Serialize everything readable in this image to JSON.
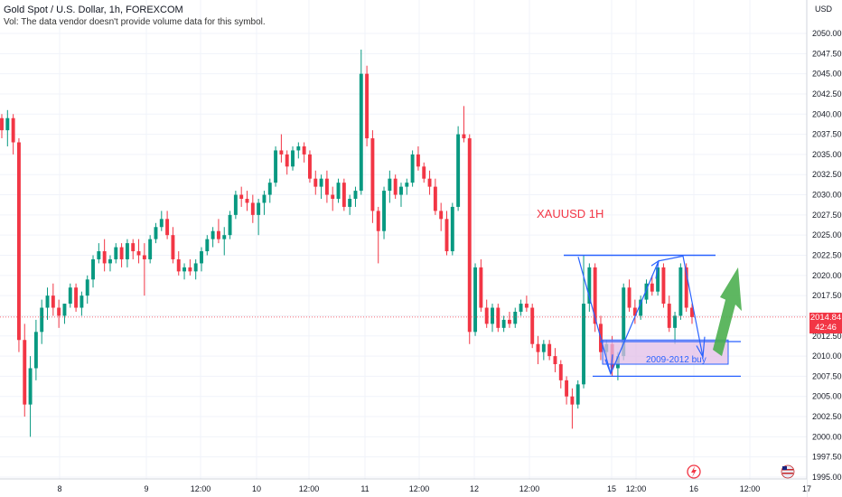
{
  "header": {
    "title": "Gold Spot / U.S. Dollar, 1h, FOREXCOM",
    "volume_note": "Vol: The data vendor doesn't provide volume data for this symbol."
  },
  "price_axis": {
    "currency": "USD",
    "current_price": "2014.84",
    "countdown": "42:46"
  },
  "annotations": {
    "chart_label": "XAUUSD 1H",
    "zone_label": "2009-2012 buy"
  },
  "colors": {
    "up": "#089981",
    "down": "#f23645",
    "annotation_blue": "#2962ff",
    "zone_fill": "#e1bee7",
    "arrow_green": "#4caf50",
    "label_red": "#f23645"
  },
  "icons": [
    "lightning-icon",
    "flag-icon"
  ],
  "chart_data": {
    "type": "candlestick",
    "title": "Gold Spot / U.S. Dollar, 1h, FOREXCOM",
    "ylim": [
      1995,
      2052.5
    ],
    "y_ticks": [
      1995.0,
      1997.5,
      2000.0,
      2002.5,
      2005.0,
      2007.5,
      2010.0,
      2012.5,
      2015.0,
      2017.5,
      2020.0,
      2022.5,
      2025.0,
      2027.5,
      2030.0,
      2032.5,
      2035.0,
      2037.5,
      2040.0,
      2042.5,
      2045.0,
      2047.5,
      2050.0
    ],
    "x_tick_labels": [
      "8",
      "9",
      "12:00",
      "10",
      "12:00",
      "11",
      "12:00",
      "12",
      "12:00",
      "15",
      "12:00",
      "16",
      "12:00",
      "17"
    ],
    "current_price": 2014.84,
    "resistance_level": 2022.5,
    "support_levels": [
      2011.8,
      2007.5
    ],
    "buy_zone": [
      2009,
      2012
    ],
    "candles": [
      [
        2039.5,
        2040.0,
        2037.0,
        2038.0
      ],
      [
        2038.0,
        2040.5,
        2036.0,
        2039.5
      ],
      [
        2039.5,
        2040.0,
        2035.0,
        2036.5
      ],
      [
        2036.5,
        2037.0,
        2010.5,
        2012.0
      ],
      [
        2012.0,
        2014.0,
        2002.5,
        2004.0
      ],
      [
        2004.0,
        2010.0,
        2000.0,
        2008.5
      ],
      [
        2008.5,
        2014.5,
        2007.0,
        2013.0
      ],
      [
        2013.0,
        2017.0,
        2011.5,
        2016.0
      ],
      [
        2016.0,
        2018.5,
        2014.5,
        2017.5
      ],
      [
        2017.5,
        2019.0,
        2015.0,
        2016.0
      ],
      [
        2016.0,
        2017.0,
        2013.5,
        2015.0
      ],
      [
        2015.0,
        2016.5,
        2014.0,
        2016.5
      ],
      [
        2016.5,
        2019.0,
        2016.0,
        2018.5
      ],
      [
        2018.5,
        2019.0,
        2015.5,
        2016.0
      ],
      [
        2016.0,
        2018.0,
        2015.0,
        2017.5
      ],
      [
        2017.5,
        2020.0,
        2016.5,
        2019.5
      ],
      [
        2019.5,
        2022.5,
        2018.5,
        2022.0
      ],
      [
        2022.0,
        2024.0,
        2021.5,
        2023.0
      ],
      [
        2023.0,
        2024.5,
        2020.5,
        2021.5
      ],
      [
        2021.5,
        2022.5,
        2020.5,
        2022.0
      ],
      [
        2022.0,
        2024.0,
        2021.5,
        2023.5
      ],
      [
        2023.5,
        2024.0,
        2021.0,
        2022.0
      ],
      [
        2022.0,
        2024.5,
        2021.0,
        2024.0
      ],
      [
        2024.0,
        2024.5,
        2022.0,
        2023.0
      ],
      [
        2023.0,
        2024.5,
        2021.5,
        2022.5
      ],
      [
        2022.5,
        2024.0,
        2017.5,
        2022.0
      ],
      [
        2022.0,
        2025.0,
        2021.5,
        2024.5
      ],
      [
        2024.5,
        2026.5,
        2024.0,
        2026.0
      ],
      [
        2026.0,
        2028.0,
        2025.5,
        2027.0
      ],
      [
        2027.0,
        2028.0,
        2024.5,
        2025.0
      ],
      [
        2025.0,
        2026.0,
        2021.5,
        2022.0
      ],
      [
        2022.0,
        2023.0,
        2020.0,
        2020.5
      ],
      [
        2020.5,
        2021.5,
        2019.5,
        2021.0
      ],
      [
        2021.0,
        2022.0,
        2020.0,
        2020.5
      ],
      [
        2020.5,
        2022.0,
        2019.5,
        2021.5
      ],
      [
        2021.5,
        2023.5,
        2020.5,
        2023.0
      ],
      [
        2023.0,
        2025.0,
        2022.5,
        2024.5
      ],
      [
        2024.5,
        2026.0,
        2023.5,
        2025.5
      ],
      [
        2025.5,
        2027.0,
        2024.0,
        2024.5
      ],
      [
        2024.5,
        2026.0,
        2022.5,
        2025.0
      ],
      [
        2025.0,
        2028.0,
        2024.5,
        2027.5
      ],
      [
        2027.5,
        2030.5,
        2027.0,
        2030.0
      ],
      [
        2030.0,
        2031.0,
        2028.5,
        2029.5
      ],
      [
        2029.5,
        2030.5,
        2028.0,
        2029.0
      ],
      [
        2029.0,
        2030.0,
        2026.5,
        2027.5
      ],
      [
        2027.5,
        2029.5,
        2025.0,
        2029.0
      ],
      [
        2029.0,
        2030.5,
        2027.5,
        2030.0
      ],
      [
        2030.0,
        2032.0,
        2029.0,
        2031.5
      ],
      [
        2031.5,
        2036.0,
        2031.0,
        2035.5
      ],
      [
        2035.5,
        2037.5,
        2034.0,
        2035.0
      ],
      [
        2035.0,
        2035.5,
        2032.5,
        2033.5
      ],
      [
        2033.5,
        2036.0,
        2033.0,
        2035.5
      ],
      [
        2035.5,
        2036.5,
        2034.5,
        2036.0
      ],
      [
        2036.0,
        2036.5,
        2034.0,
        2035.0
      ],
      [
        2035.0,
        2035.5,
        2031.5,
        2032.0
      ],
      [
        2032.0,
        2033.0,
        2030.0,
        2031.0
      ],
      [
        2031.0,
        2032.5,
        2029.5,
        2032.0
      ],
      [
        2032.0,
        2033.0,
        2029.0,
        2030.0
      ],
      [
        2030.0,
        2031.0,
        2028.0,
        2029.5
      ],
      [
        2029.5,
        2032.0,
        2029.0,
        2031.5
      ],
      [
        2031.5,
        2032.0,
        2028.0,
        2028.5
      ],
      [
        2028.5,
        2030.0,
        2027.5,
        2029.5
      ],
      [
        2029.5,
        2031.0,
        2028.5,
        2030.5
      ],
      [
        2030.5,
        2048.0,
        2030.0,
        2045.0
      ],
      [
        2045.0,
        2046.0,
        2036.0,
        2037.0
      ],
      [
        2037.0,
        2038.0,
        2026.5,
        2028.0
      ],
      [
        2028.0,
        2028.5,
        2021.5,
        2025.5
      ],
      [
        2025.5,
        2031.0,
        2024.5,
        2030.5
      ],
      [
        2030.5,
        2033.0,
        2029.0,
        2032.0
      ],
      [
        2032.0,
        2032.5,
        2029.5,
        2030.0
      ],
      [
        2030.0,
        2031.5,
        2028.5,
        2031.0
      ],
      [
        2031.0,
        2032.0,
        2030.0,
        2031.5
      ],
      [
        2031.5,
        2035.5,
        2031.0,
        2035.0
      ],
      [
        2035.0,
        2036.0,
        2033.0,
        2033.5
      ],
      [
        2033.5,
        2034.0,
        2031.5,
        2032.0
      ],
      [
        2032.0,
        2033.0,
        2030.0,
        2031.0
      ],
      [
        2031.0,
        2032.0,
        2027.5,
        2028.0
      ],
      [
        2028.0,
        2029.0,
        2025.5,
        2027.0
      ],
      [
        2027.0,
        2028.0,
        2022.5,
        2023.0
      ],
      [
        2023.0,
        2029.0,
        2022.5,
        2028.5
      ],
      [
        2028.5,
        2038.5,
        2028.0,
        2037.5
      ],
      [
        2037.5,
        2041.0,
        2036.5,
        2037.0
      ],
      [
        2037.0,
        2037.5,
        2011.5,
        2013.0
      ],
      [
        2013.0,
        2021.5,
        2012.5,
        2021.0
      ],
      [
        2021.0,
        2022.0,
        2015.5,
        2016.0
      ],
      [
        2016.0,
        2017.0,
        2013.5,
        2014.0
      ],
      [
        2014.0,
        2016.5,
        2013.0,
        2016.0
      ],
      [
        2016.0,
        2016.5,
        2013.0,
        2013.5
      ],
      [
        2013.5,
        2015.0,
        2013.0,
        2014.5
      ],
      [
        2014.5,
        2015.5,
        2013.5,
        2014.0
      ],
      [
        2014.0,
        2016.0,
        2013.5,
        2015.5
      ],
      [
        2015.5,
        2017.0,
        2015.0,
        2016.5
      ],
      [
        2016.5,
        2017.5,
        2015.5,
        2016.0
      ],
      [
        2016.0,
        2016.5,
        2011.0,
        2011.5
      ],
      [
        2011.5,
        2012.5,
        2009.0,
        2010.5
      ],
      [
        2010.5,
        2012.0,
        2009.5,
        2011.5
      ],
      [
        2011.5,
        2012.0,
        2009.5,
        2010.0
      ],
      [
        2010.0,
        2011.0,
        2008.0,
        2009.0
      ],
      [
        2009.0,
        2009.5,
        2006.0,
        2007.0
      ],
      [
        2007.0,
        2007.5,
        2004.0,
        2005.0
      ],
      [
        2005.0,
        2006.0,
        2001.0,
        2004.0
      ],
      [
        2004.0,
        2007.0,
        2003.5,
        2006.5
      ],
      [
        2006.5,
        2022.5,
        2006.0,
        2016.5
      ],
      [
        2016.5,
        2021.5,
        2015.5,
        2021.0
      ],
      [
        2021.0,
        2021.5,
        2013.0,
        2014.0
      ],
      [
        2014.0,
        2015.0,
        2009.5,
        2010.5
      ],
      [
        2010.5,
        2012.0,
        2009.0,
        2011.5
      ],
      [
        2011.5,
        2012.5,
        2007.5,
        2008.5
      ],
      [
        2008.5,
        2010.5,
        2007.0,
        2010.0
      ],
      [
        2010.0,
        2019.0,
        2009.5,
        2018.5
      ],
      [
        2018.5,
        2019.5,
        2015.5,
        2016.0
      ],
      [
        2016.0,
        2017.0,
        2014.0,
        2015.0
      ],
      [
        2015.0,
        2017.5,
        2014.5,
        2017.0
      ],
      [
        2017.0,
        2019.5,
        2016.5,
        2019.0
      ],
      [
        2019.0,
        2020.0,
        2017.5,
        2018.0
      ],
      [
        2018.0,
        2021.5,
        2017.5,
        2021.0
      ],
      [
        2021.0,
        2021.5,
        2016.0,
        2016.5
      ],
      [
        2016.5,
        2017.5,
        2013.0,
        2013.5
      ],
      [
        2013.5,
        2015.5,
        2011.5,
        2015.0
      ],
      [
        2015.0,
        2021.5,
        2014.5,
        2021.0
      ],
      [
        2021.0,
        2021.5,
        2015.5,
        2016.0
      ],
      [
        2016.0,
        2016.5,
        2014.0,
        2014.84
      ]
    ]
  }
}
